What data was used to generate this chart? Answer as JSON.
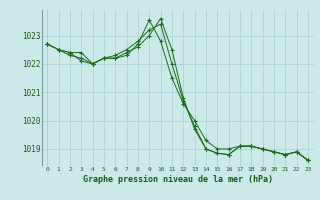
{
  "title": "Graphe pression niveau de la mer (hPa)",
  "bg_color": "#cce8e8",
  "grid_color": "#aacece",
  "line_color": "#1a6b1a",
  "marker": "+",
  "label_color": "#1a5a1a",
  "ylim": [
    1018.4,
    1023.9
  ],
  "xlim": [
    -0.5,
    23.5
  ],
  "yticks": [
    1019,
    1020,
    1021,
    1022,
    1023
  ],
  "xticks": [
    0,
    1,
    2,
    3,
    4,
    5,
    6,
    7,
    8,
    9,
    10,
    11,
    12,
    13,
    14,
    15,
    16,
    17,
    18,
    19,
    20,
    21,
    22,
    23
  ],
  "series": [
    [
      1022.7,
      1022.5,
      1022.4,
      1022.4,
      1022.0,
      1022.2,
      1022.3,
      1022.5,
      1022.8,
      1023.2,
      1023.4,
      1022.0,
      1020.7,
      1019.8,
      1019.0,
      1018.85,
      1018.8,
      1019.1,
      1019.1,
      1019.0,
      1018.9,
      1018.8,
      1018.9,
      1018.6
    ],
    [
      1022.7,
      1022.5,
      1022.4,
      1022.1,
      1022.0,
      1022.2,
      1022.2,
      1022.3,
      1022.7,
      1023.55,
      1022.8,
      1021.5,
      1020.6,
      1020.0,
      1019.3,
      1019.0,
      1019.0,
      1019.1,
      1019.1,
      1019.0,
      1018.9,
      1018.8,
      1018.9,
      1018.6
    ],
    [
      1022.7,
      1022.5,
      1022.3,
      1022.2,
      1022.0,
      1022.2,
      1022.2,
      1022.4,
      1022.6,
      1023.0,
      1023.6,
      1022.5,
      1020.8,
      1019.7,
      1019.0,
      1018.85,
      1018.8,
      1019.1,
      1019.1,
      1019.0,
      1018.9,
      1018.8,
      1018.9,
      1018.6
    ]
  ]
}
